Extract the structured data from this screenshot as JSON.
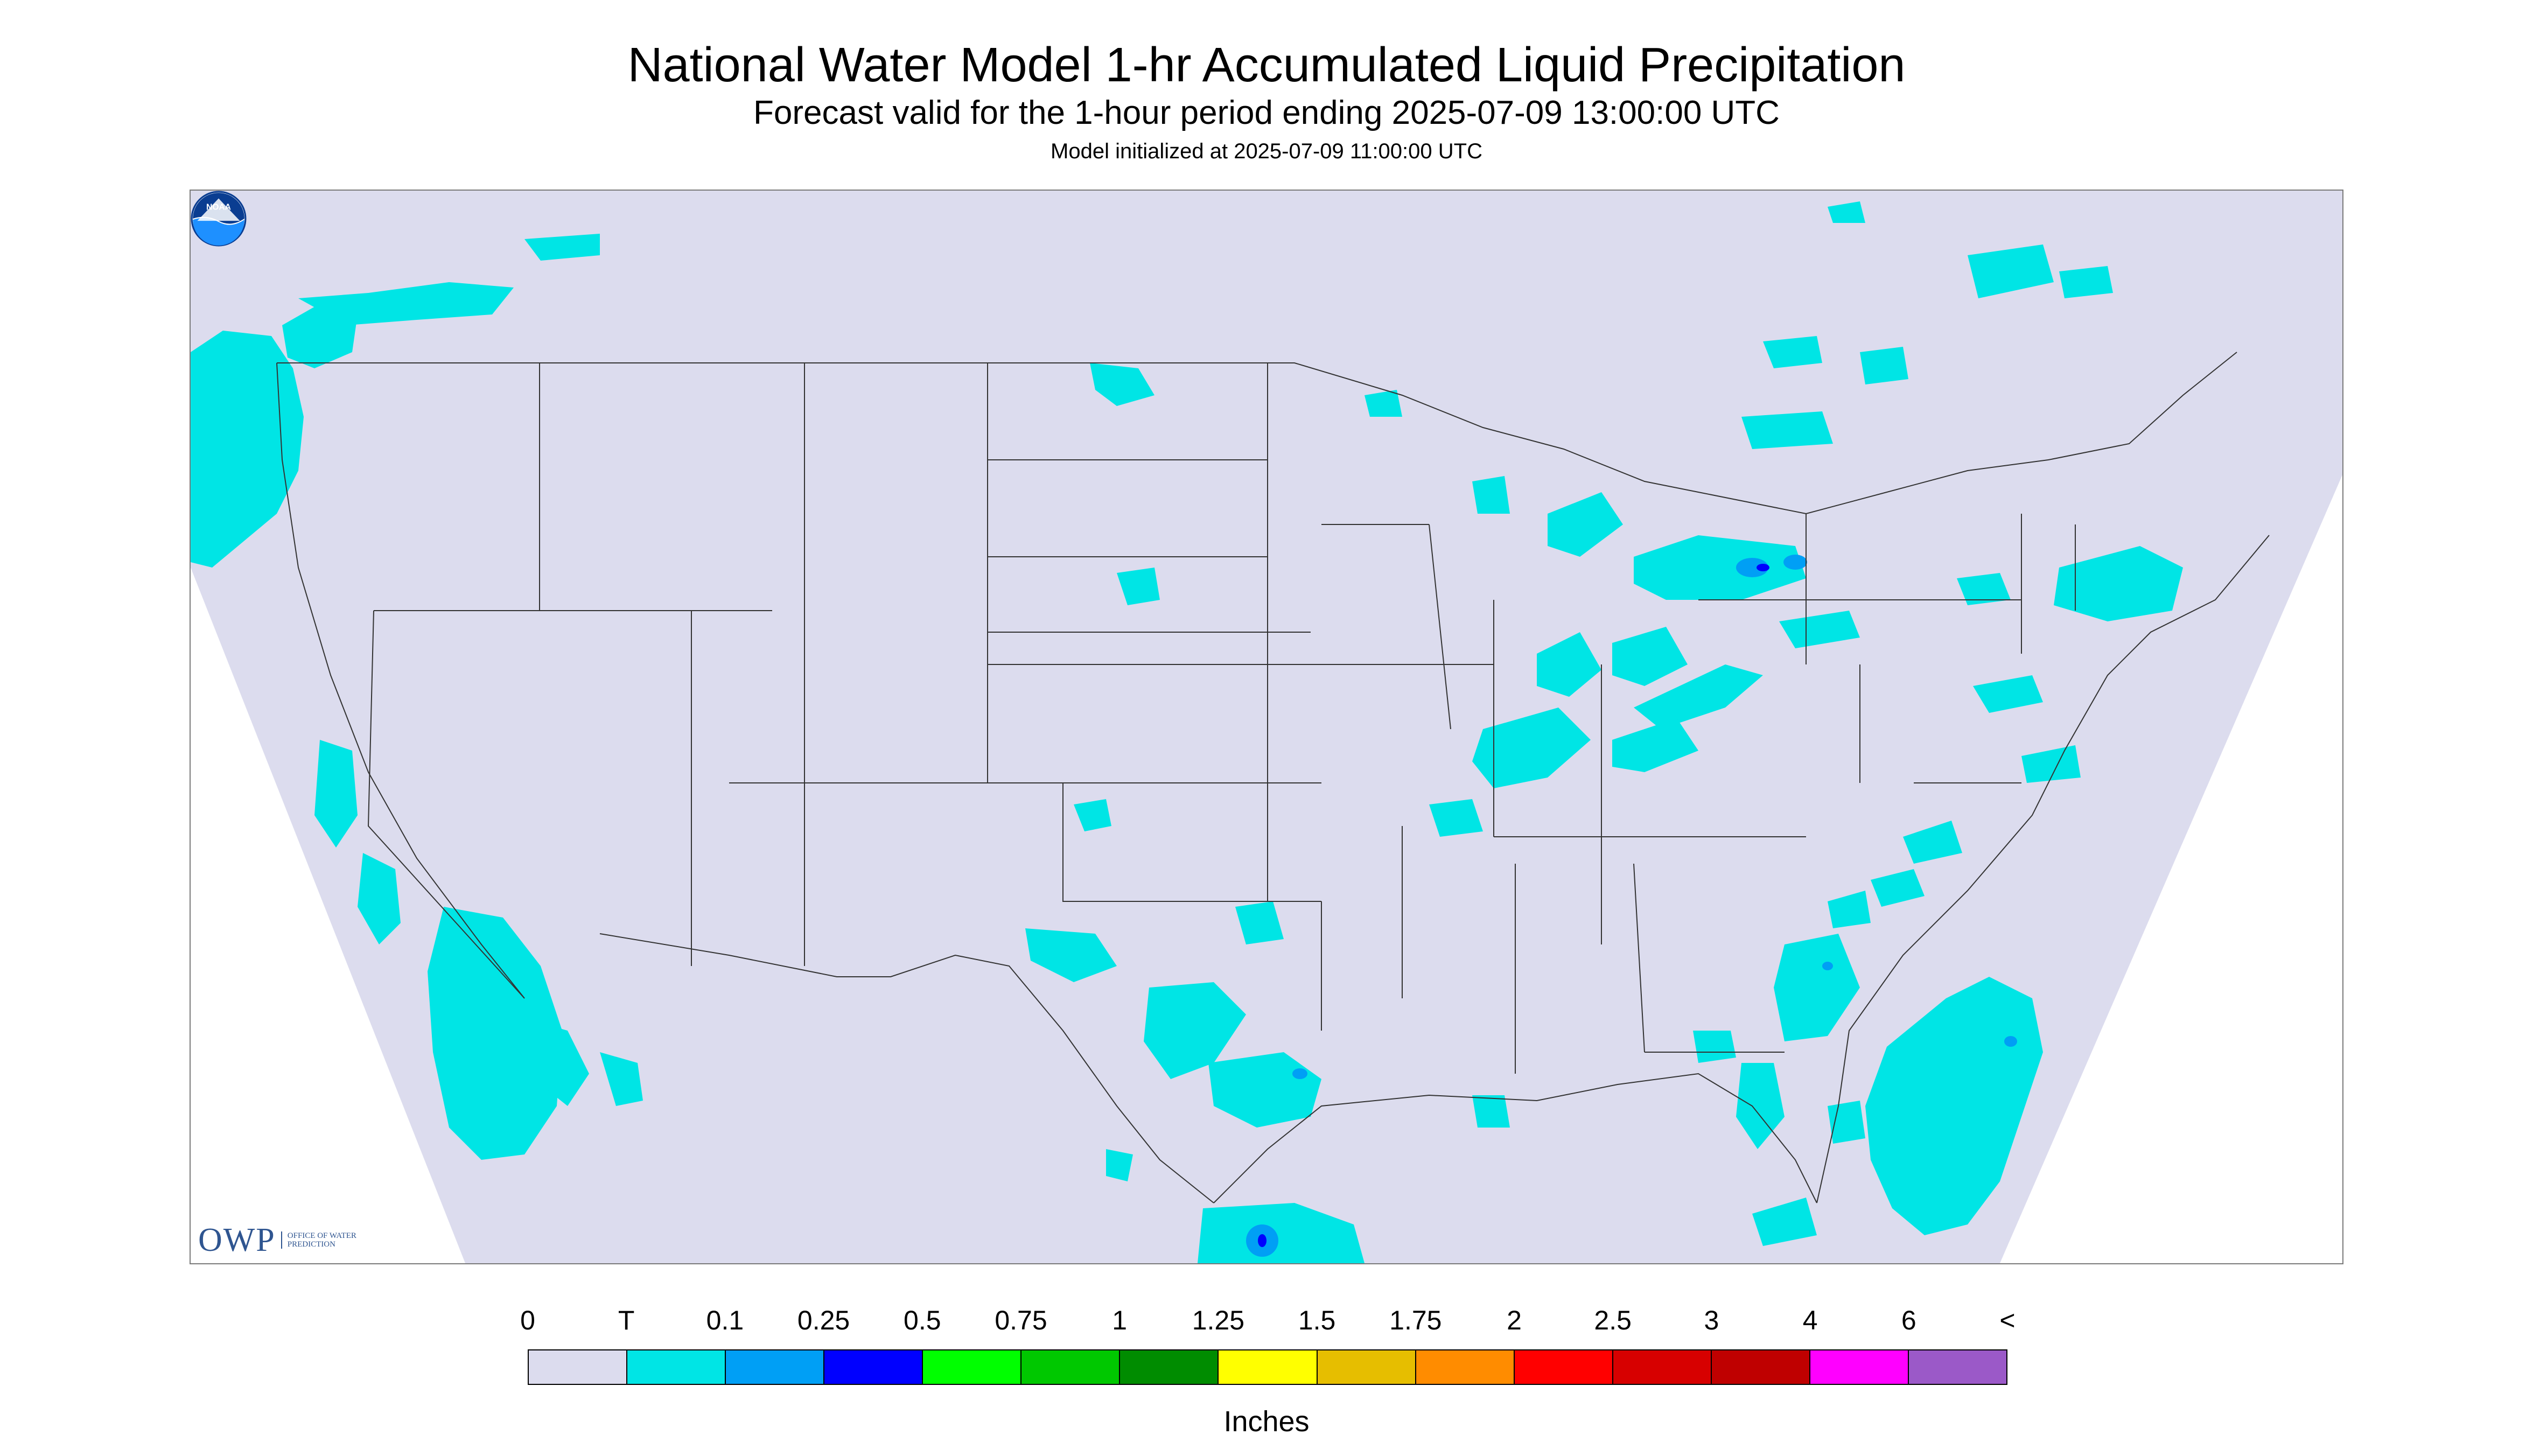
{
  "header": {
    "title": "National Water Model 1-hr Accumulated Liquid Precipitation",
    "subtitle": "Forecast valid for the 1-hour period ending 2025-07-09 13:00:00 UTC",
    "init": "Model initialized at 2025-07-09 11:00:00 UTC"
  },
  "logos": {
    "owp_mark": "OWP",
    "owp_text": "OFFICE OF WATER PREDICTION",
    "noaa": "NOAA"
  },
  "legend": {
    "labels": [
      "0",
      "T",
      "0.1",
      "0.25",
      "0.5",
      "0.75",
      "1",
      "1.25",
      "1.5",
      "1.75",
      "2",
      "2.5",
      "3",
      "4",
      "6",
      "<"
    ],
    "colors": [
      "#dcdcee",
      "#00e5e5",
      "#009ff5",
      "#0000ff",
      "#00ff00",
      "#00c800",
      "#008c00",
      "#ffff00",
      "#e6be00",
      "#ff8c00",
      "#ff0000",
      "#d70000",
      "#bf0000",
      "#ff00ff",
      "#9b59c8"
    ],
    "unit": "Inches"
  },
  "map_colors": {
    "background": "#dcdcee",
    "outside": "#ffffff",
    "trace": "#00e5e5",
    "light": "#009ff5",
    "moderate": "#0000ff",
    "border": "#333333"
  }
}
